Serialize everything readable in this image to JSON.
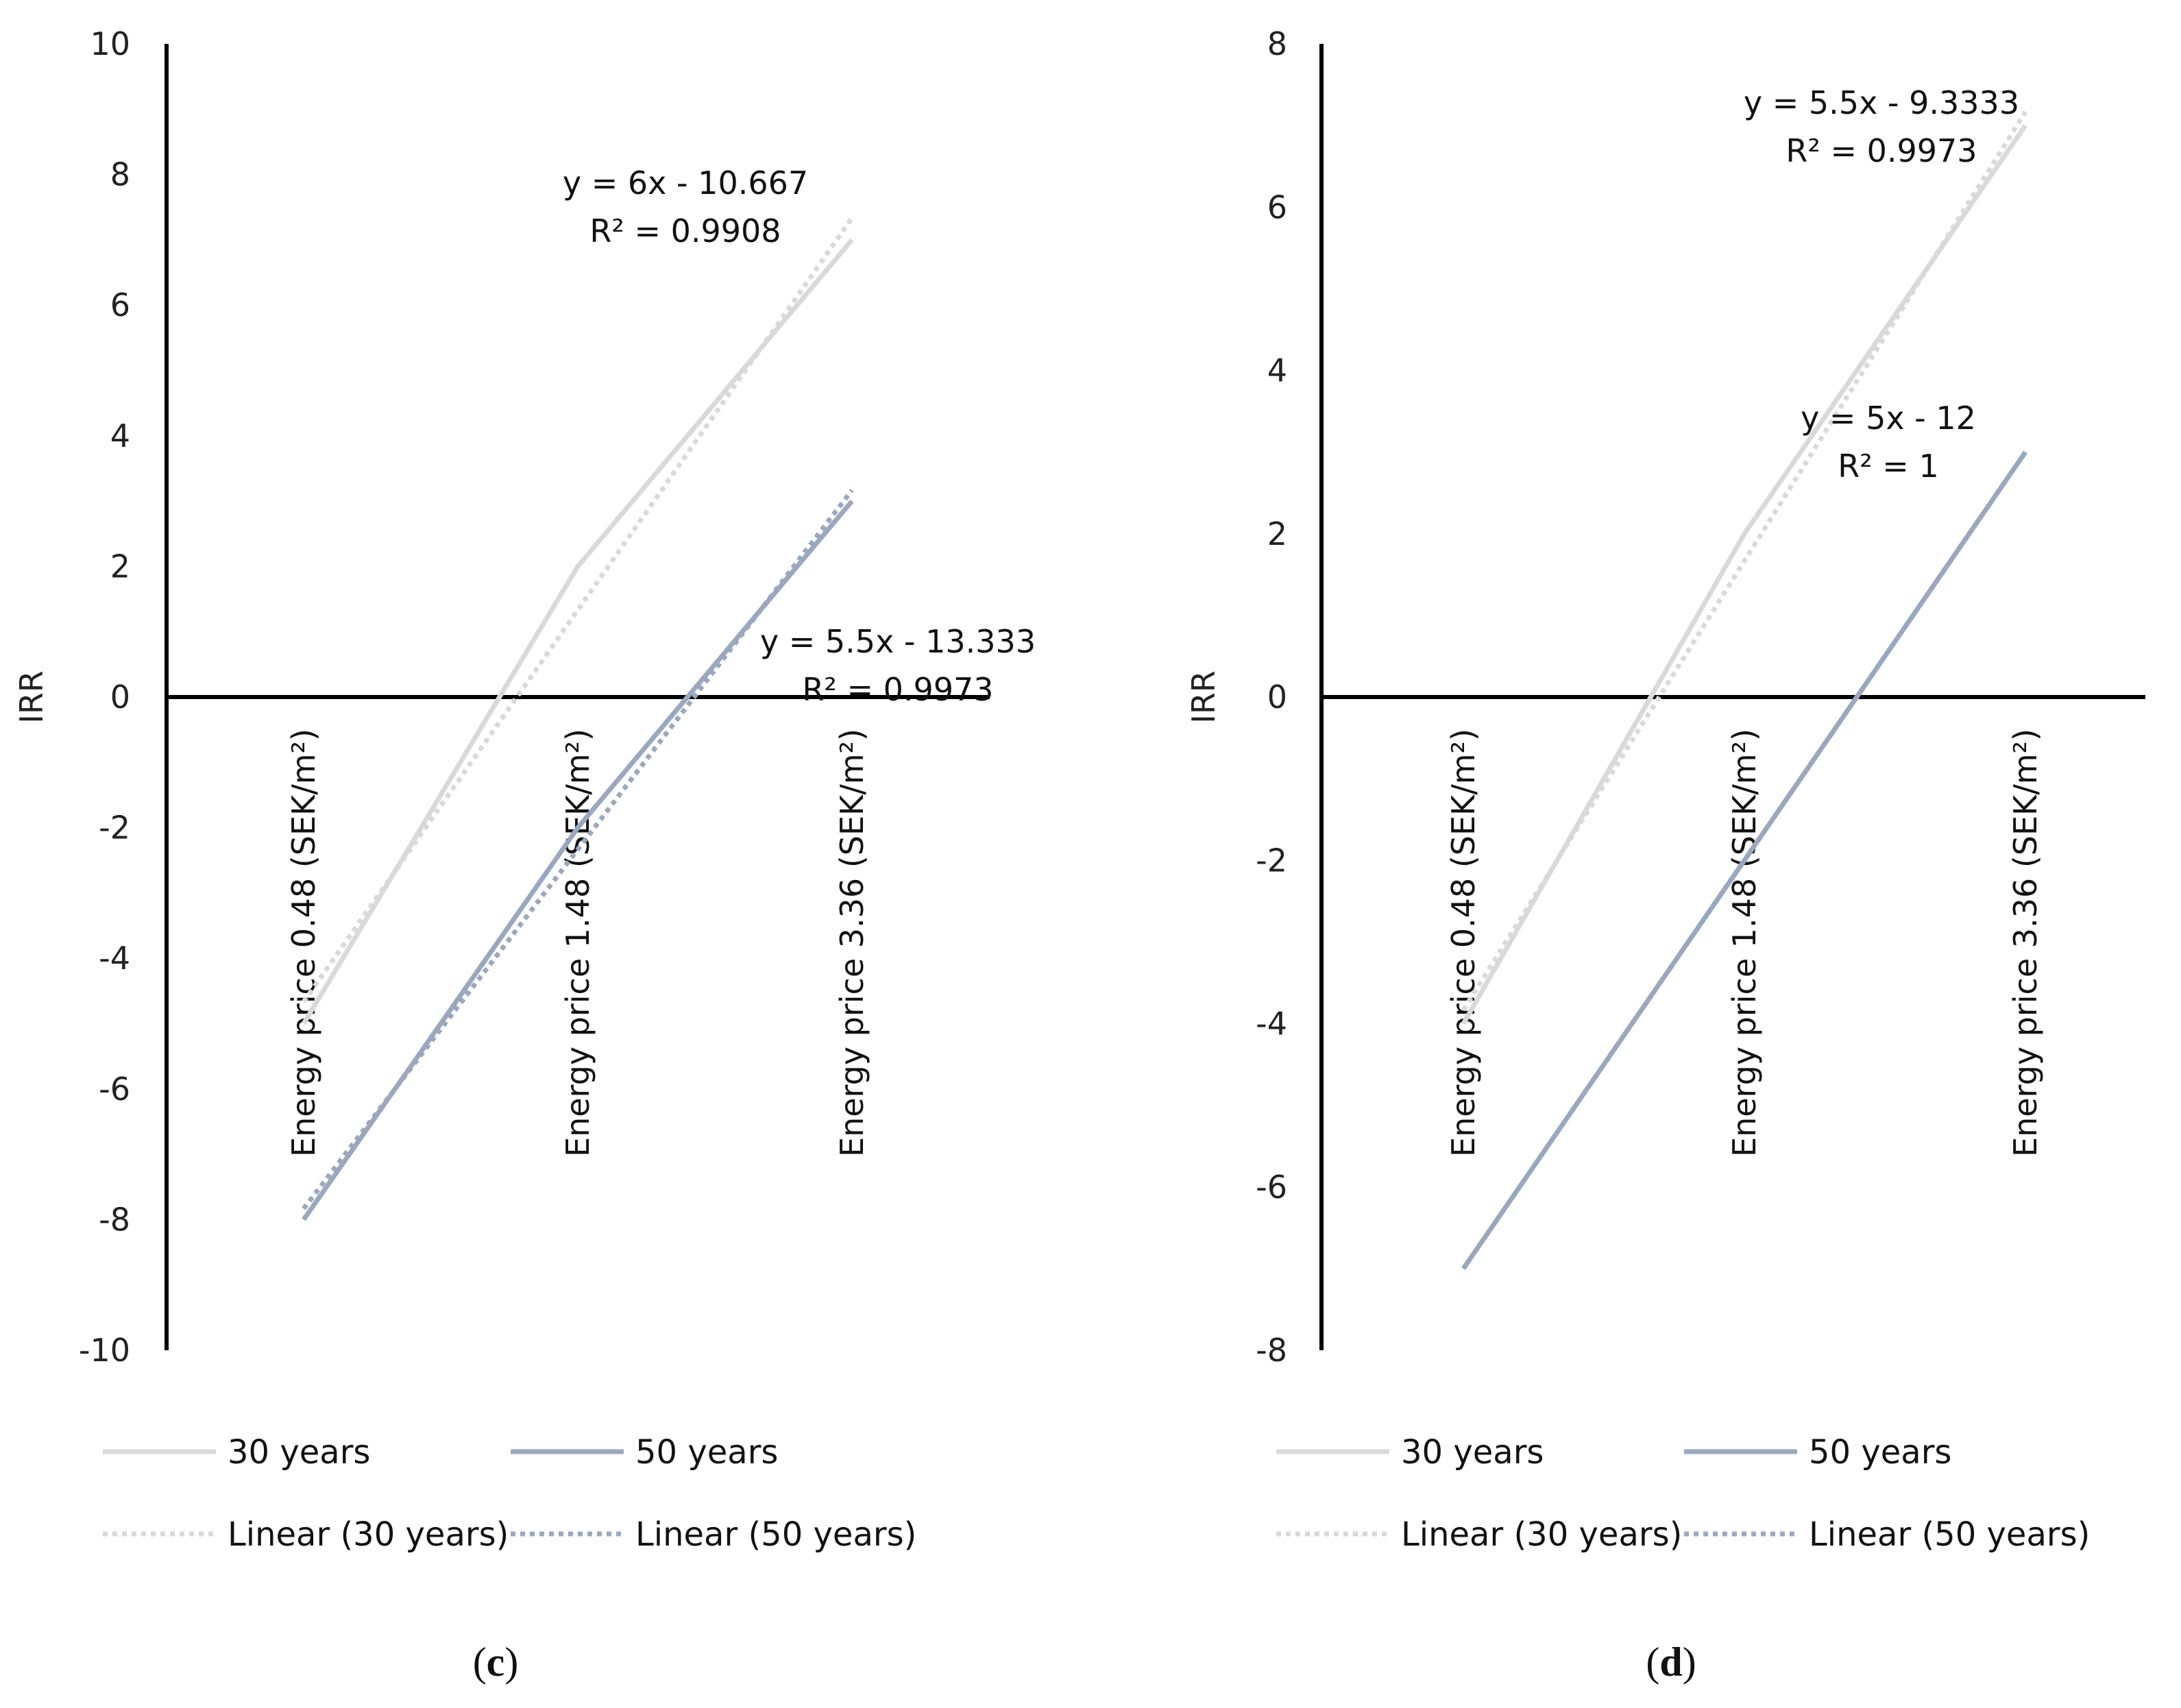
{
  "chart_data": [
    {
      "type": "line",
      "panel_label": "(c)",
      "panel_letter": "c",
      "ylabel": "IRR",
      "xlabel": "",
      "ylim": [
        -10,
        10
      ],
      "yticks": [
        10,
        8,
        6,
        4,
        2,
        0,
        -2,
        -4,
        -6,
        -8,
        -10
      ],
      "categories": [
        "Energy price 0.48 (SEK/m²)",
        "Energy price 1.48 (SEK/m²)",
        "Energy price 3.36 (SEK/m²)"
      ],
      "series": [
        {
          "name": "30 years",
          "values": [
            -5,
            2,
            7
          ],
          "color": "#d9d9d9",
          "style": "solid"
        },
        {
          "name": "50 years",
          "values": [
            -8,
            -2,
            3
          ],
          "color": "#9aa8bf",
          "style": "solid"
        }
      ],
      "trendlines": [
        {
          "name": "Linear (30 years)",
          "slope": 6,
          "intercept": -10.667,
          "color": "#d9d9d9",
          "equation": "y = 6x - 10.667",
          "r2": "R² = 0.9908",
          "label_anchor": "top-right"
        },
        {
          "name": "Linear (50 years)",
          "slope": 5.5,
          "intercept": -13.333,
          "color": "#9aa8bf",
          "equation": "y = 5.5x - 13.333",
          "r2": "R² = 0.9973",
          "label_anchor": "right"
        }
      ],
      "legend": [
        "30 years",
        "50 years",
        "Linear (30 years)",
        "Linear (50 years)"
      ],
      "legend_position": "bottom"
    },
    {
      "type": "line",
      "panel_label": "(d)",
      "panel_letter": "d",
      "ylabel": "IRR",
      "xlabel": "",
      "ylim": [
        -8,
        8
      ],
      "yticks": [
        8,
        6,
        4,
        2,
        0,
        -2,
        -4,
        -6,
        -8
      ],
      "categories": [
        "Energy price 0.48 (SEK/m²)",
        "Energy price 1.48 (SEK/m²)",
        "Energy price 3.36 (SEK/m²)"
      ],
      "series": [
        {
          "name": "30 years",
          "values": [
            -4,
            2,
            7
          ],
          "color": "#d9d9d9",
          "style": "solid"
        },
        {
          "name": "50 years",
          "values": [
            -7,
            -2,
            3
          ],
          "color": "#9aa8bf",
          "style": "solid"
        }
      ],
      "trendlines": [
        {
          "name": "Linear (30 years)",
          "slope": 5.5,
          "intercept": -9.3333,
          "color": "#d9d9d9",
          "equation": "y = 5.5x - 9.3333",
          "r2": "R² = 0.9973",
          "label_anchor": "top-right"
        },
        {
          "name": "Linear (50 years)",
          "slope": 5,
          "intercept": -12,
          "color": "#9aa8bf",
          "equation": "y = 5x - 12",
          "r2": "R² = 1",
          "label_anchor": "right"
        }
      ],
      "legend": [
        "30 years",
        "50 years",
        "Linear (30 years)",
        "Linear (50 years)"
      ],
      "legend_position": "bottom"
    }
  ]
}
